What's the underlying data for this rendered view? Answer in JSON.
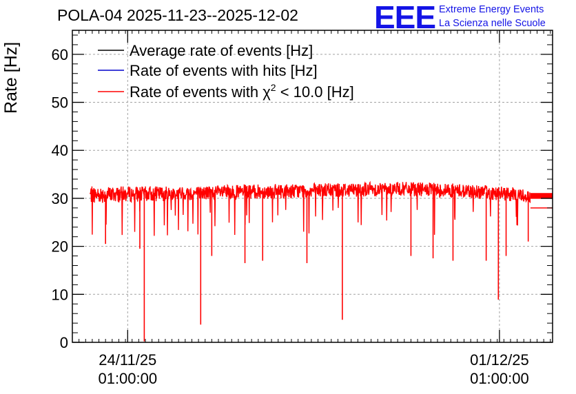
{
  "header": {
    "title": "POLA-04 2025-11-23--2025-12-02",
    "logo_text": "EEE",
    "logo_line1": "Extreme Energy Events",
    "logo_line2": "La Scienza nelle Scuole"
  },
  "chart_data": {
    "type": "line",
    "title": "POLA-04 2025-11-23--2025-12-02",
    "xlabel": "",
    "ylabel": "Rate [Hz]",
    "ylim": [
      0,
      65
    ],
    "yticks": [
      0,
      10,
      20,
      30,
      40,
      50,
      60
    ],
    "xlim": [
      "2025-11-23 00:00",
      "2025-12-02 01:00"
    ],
    "xtick_labels": [
      {
        "date": "24/11/25",
        "time": "01:00:00",
        "at": "2025-11-24 01:00"
      },
      {
        "date": "01/12/25",
        "time": "01:00:00",
        "at": "2025-12-01 01:00"
      }
    ],
    "grid": true,
    "legend_position": "top-left",
    "legend": [
      {
        "name": "Average rate of events [Hz]",
        "color": "#000000"
      },
      {
        "name": "Rate of events with hits [Hz]",
        "color": "#0000cc"
      },
      {
        "name": "Rate of events with χ² < 10.0 [Hz]",
        "color": "#ff0000",
        "parts": [
          "Rate of events with ",
          "χ",
          "2",
          " < 10.0 [Hz]"
        ]
      }
    ],
    "series": [
      {
        "name": "Rate of events with χ² < 10.0 [Hz]",
        "color": "#ff0000",
        "x_start": "2025-11-23 08:00",
        "x_end": "2025-12-01 15:00",
        "mean_band": [
          {
            "x": "2025-11-23 08:00",
            "low": 29.0,
            "high": 32.5
          },
          {
            "x": "2025-11-25 00:00",
            "low": 29.5,
            "high": 32.5
          },
          {
            "x": "2025-11-27 00:00",
            "low": 30.0,
            "high": 33.0
          },
          {
            "x": "2025-11-29 00:00",
            "low": 30.5,
            "high": 33.5
          },
          {
            "x": "2025-11-30 12:00",
            "low": 30.0,
            "high": 33.0
          },
          {
            "x": "2025-12-01 15:00",
            "low": 29.0,
            "high": 32.0
          }
        ],
        "dips": [
          {
            "x": "2025-11-24 08:30",
            "y": 0.2
          },
          {
            "x": "2025-11-25 10:00",
            "y": 3.7
          },
          {
            "x": "2025-11-28 02:00",
            "y": 4.7
          },
          {
            "x": "2025-11-27 10:00",
            "y": 16.5
          },
          {
            "x": "2025-12-01 00:30",
            "y": 8.9
          },
          {
            "x": "2025-11-23 15:00",
            "y": 20.5
          },
          {
            "x": "2025-11-24 06:30",
            "y": 19.5
          },
          {
            "x": "2025-11-25 15:00",
            "y": 18.0
          },
          {
            "x": "2025-11-26 06:00",
            "y": 16.5
          },
          {
            "x": "2025-11-26 14:00",
            "y": 17.0
          },
          {
            "x": "2025-11-29 09:00",
            "y": 18.0
          },
          {
            "x": "2025-11-29 19:00",
            "y": 17.5
          },
          {
            "x": "2025-11-30 04:00",
            "y": 17.0
          },
          {
            "x": "2025-11-30 19:00",
            "y": 17.0
          },
          {
            "x": "2025-12-01 04:00",
            "y": 18.0
          },
          {
            "x": "2025-12-01 14:00",
            "y": 21.0
          }
        ],
        "tail_levels": [
          28.0,
          30.0,
          31.0
        ]
      }
    ]
  }
}
